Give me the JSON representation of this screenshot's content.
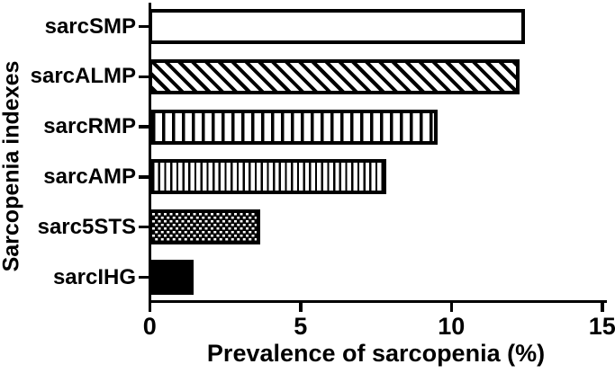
{
  "chart_data": {
    "type": "bar",
    "orientation": "horizontal",
    "categories": [
      "sarcSMP",
      "sarcALMP",
      "sarcRMP",
      "sarcAMP",
      "sarc5STS",
      "sarcIHG"
    ],
    "values": [
      12.4,
      12.2,
      9.5,
      7.8,
      3.6,
      1.4
    ],
    "patterns": [
      "plain-white",
      "diagonal-hatch",
      "vertical-stripes-wide",
      "vertical-stripes-narrow",
      "brick-dots",
      "solid-black"
    ],
    "xlabel": "Prevalence of sarcopenia (%)",
    "ylabel": "Sarcopenia indexes",
    "xlim": [
      0,
      15
    ],
    "xticks": [
      "0",
      "5",
      "10",
      "15"
    ],
    "grid": "off",
    "legend": "none",
    "bar_outline_color": "#000000",
    "background_color": "#ffffff"
  }
}
